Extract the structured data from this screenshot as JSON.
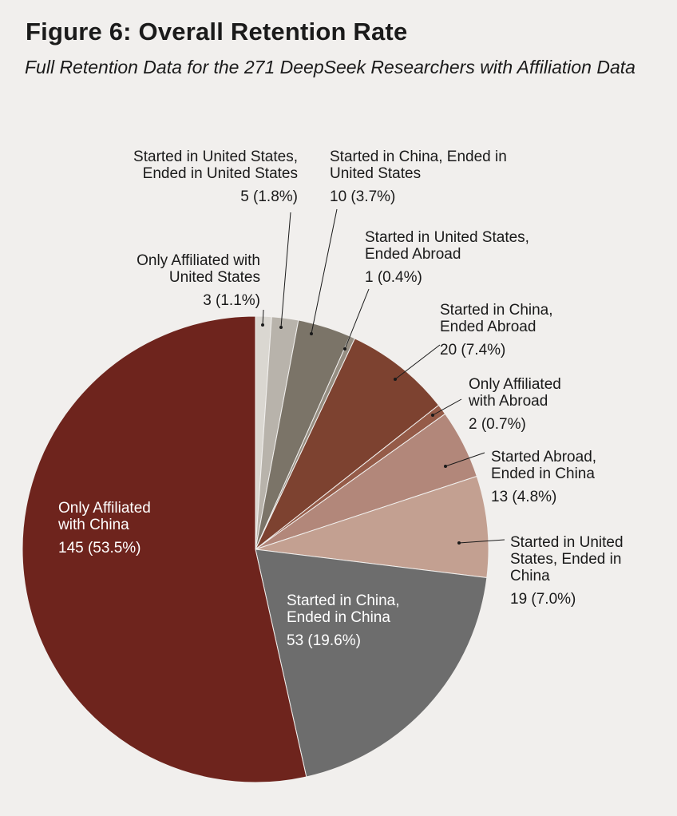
{
  "title": "Figure 6: Overall Retention Rate",
  "subtitle": "Full Retention Data for the 271 DeepSeek Researchers with Affiliation Data",
  "chart_data": {
    "type": "pie",
    "total": 271,
    "slices": [
      {
        "name": "Only Affiliated with United States",
        "count": 3,
        "percent": 1.1,
        "value_label": "3 (1.1%)",
        "color": "#dad7d1"
      },
      {
        "name": "Started in United States, Ended in United States",
        "count": 5,
        "percent": 1.8,
        "value_label": "5 (1.8%)",
        "color": "#b8b3ab"
      },
      {
        "name": "Started in China, Ended in United States",
        "count": 10,
        "percent": 3.7,
        "value_label": "10 (3.7%)",
        "color": "#7b7468"
      },
      {
        "name": "Started in United States, Ended Abroad",
        "count": 1,
        "percent": 0.4,
        "value_label": "1 (0.4%)",
        "color": "#958d81"
      },
      {
        "name": "Started in China, Ended Abroad",
        "count": 20,
        "percent": 7.4,
        "value_label": "20 (7.4%)",
        "color": "#7d4230"
      },
      {
        "name": "Only Affiliated with Abroad",
        "count": 2,
        "percent": 0.7,
        "value_label": "2 (0.7%)",
        "color": "#955b48"
      },
      {
        "name": "Started Abroad, Ended in China",
        "count": 13,
        "percent": 4.8,
        "value_label": "13 (4.8%)",
        "color": "#b2877a"
      },
      {
        "name": "Started in United States, Ended in China",
        "count": 19,
        "percent": 7.0,
        "value_label": "19 (7.0%)",
        "color": "#c3a091"
      },
      {
        "name": "Started in China, Ended in China",
        "count": 53,
        "percent": 19.6,
        "value_label": "53 (19.6%)",
        "color": "#6d6d6d"
      },
      {
        "name": "Only Affiliated with China",
        "count": 145,
        "percent": 53.5,
        "value_label": "145 (53.5%)",
        "color": "#6e241d"
      }
    ],
    "labels": [
      {
        "lines": [
          "Only Affiliated with",
          "United States"
        ],
        "value": "3 (1.1%)"
      },
      {
        "lines": [
          "Started in United States,",
          "Ended in United States"
        ],
        "value": "5 (1.8%)"
      },
      {
        "lines": [
          "Started in China, Ended in",
          "United States"
        ],
        "value": "10 (3.7%)"
      },
      {
        "lines": [
          "Started in United States,",
          "Ended Abroad"
        ],
        "value": "1 (0.4%)"
      },
      {
        "lines": [
          "Started in China,",
          "Ended Abroad"
        ],
        "value": "20 (7.4%)"
      },
      {
        "lines": [
          "Only Affiliated",
          "with Abroad"
        ],
        "value": "2 (0.7%)"
      },
      {
        "lines": [
          "Started Abroad,",
          "Ended in China"
        ],
        "value": "13 (4.8%)"
      },
      {
        "lines": [
          "Started in United",
          "States, Ended in",
          "China"
        ],
        "value": "19 (7.0%)"
      },
      {
        "lines": [
          "Started in China,",
          "Ended in China"
        ],
        "value": "53 (19.6%)"
      },
      {
        "lines": [
          "Only Affiliated",
          "with China"
        ],
        "value": "145 (53.5%)"
      }
    ]
  }
}
